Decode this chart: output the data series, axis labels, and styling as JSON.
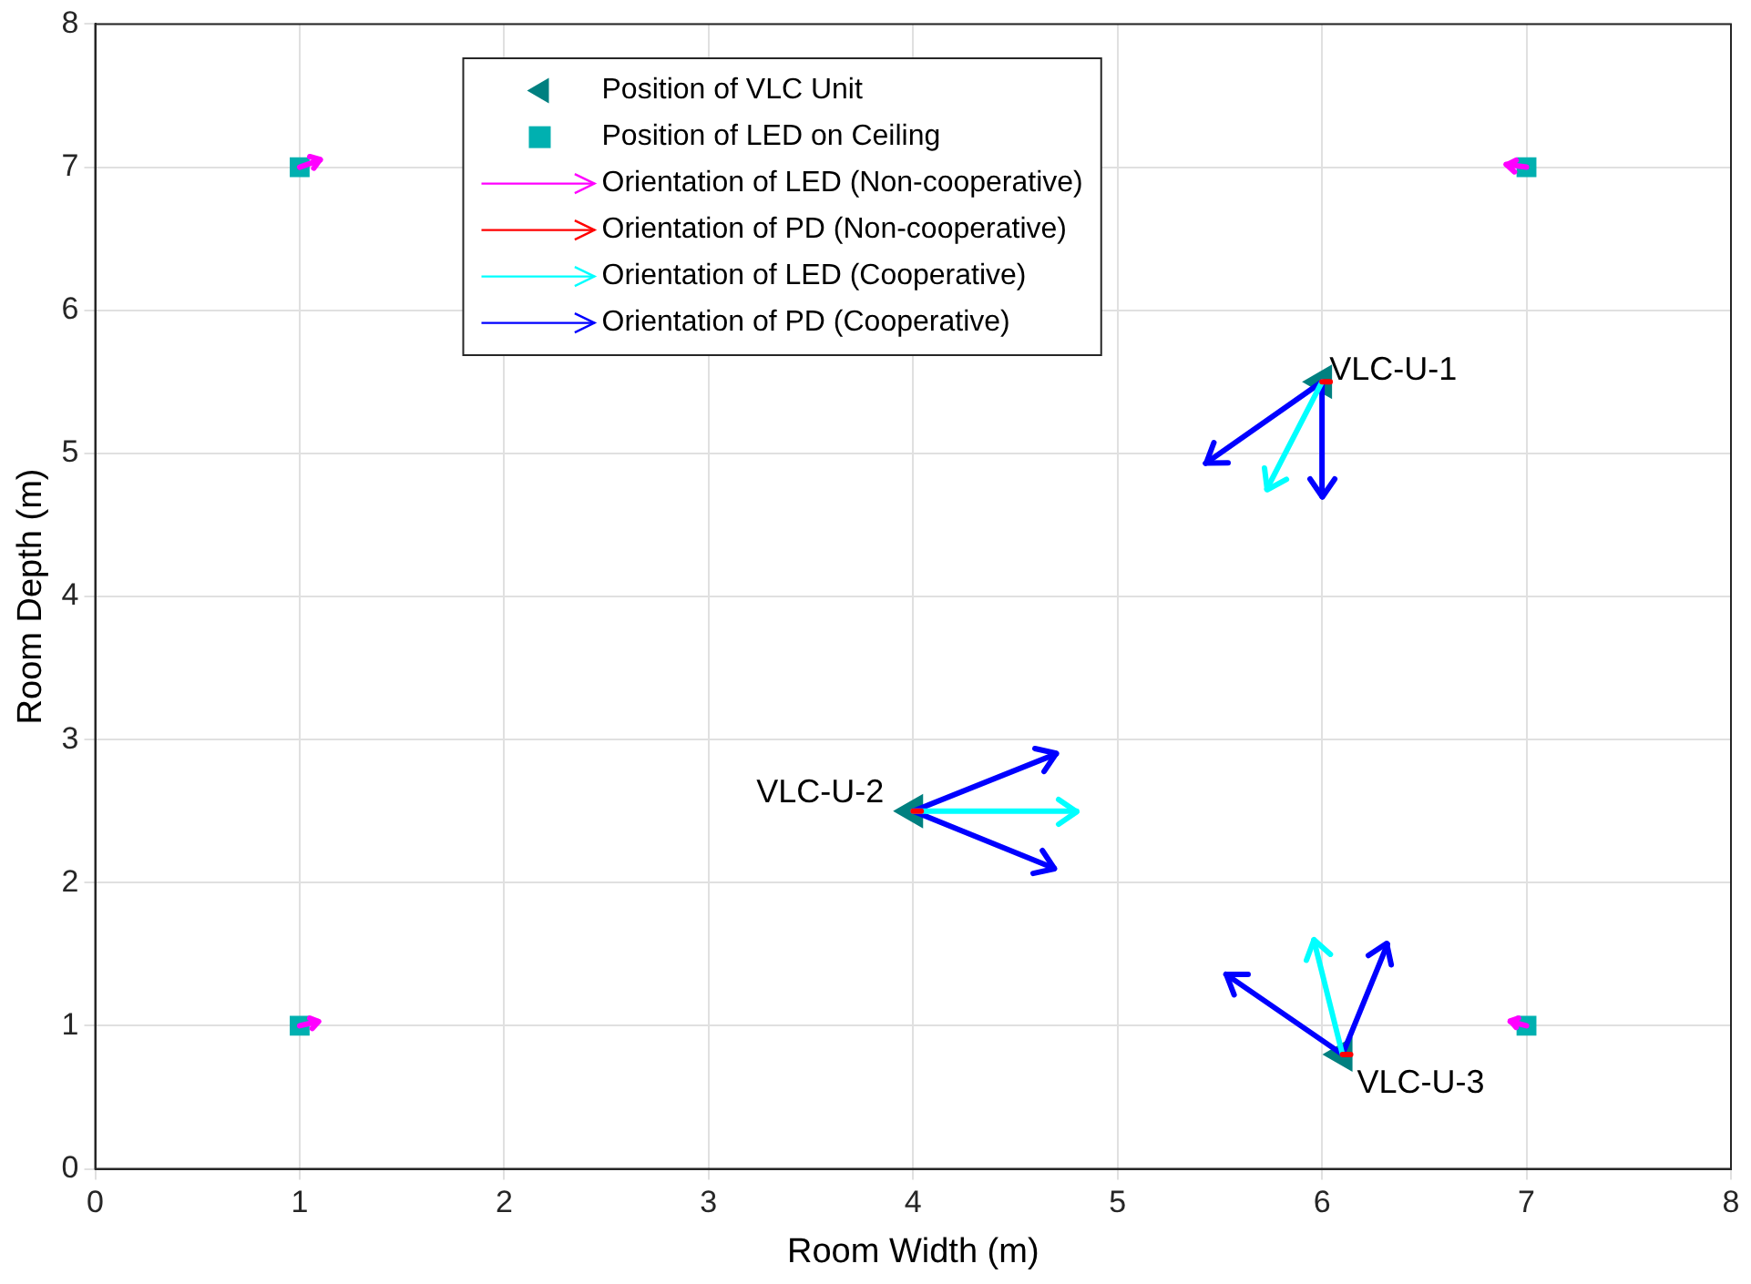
{
  "chart_data": {
    "type": "scatter",
    "xlabel": "Room Width (m)",
    "ylabel": "Room Depth (m)",
    "xlim": [
      0,
      8
    ],
    "ylim": [
      0,
      8
    ],
    "xticks": [
      0,
      1,
      2,
      3,
      4,
      5,
      6,
      7,
      8
    ],
    "yticks": [
      0,
      1,
      2,
      3,
      4,
      5,
      6,
      7,
      8
    ],
    "grid": true,
    "legend": "top",
    "series": [
      {
        "name": "Position of VLC Unit",
        "type": "scatter",
        "marker": "triangle",
        "color": "#008080",
        "x": [
          6,
          4,
          6.1
        ],
        "values": [
          5.5,
          2.5,
          0.8
        ]
      },
      {
        "name": "Position of LED on Ceiling",
        "type": "scatter",
        "marker": "square",
        "color": "#00b0b0",
        "x": [
          1,
          7,
          1,
          7
        ],
        "values": [
          7,
          7,
          1,
          1
        ]
      },
      {
        "name": "Orientation of LED (Non-cooperative)",
        "type": "line",
        "color": "#ff00ff",
        "x": [
          1,
          1.1,
          null,
          7,
          6.9,
          null,
          1,
          1.09,
          null,
          7,
          6.92
        ],
        "values": [
          7,
          7.05,
          null,
          7,
          7.02,
          null,
          1,
          1.03,
          null,
          1,
          1.03
        ]
      },
      {
        "name": "Orientation of PD (Non-cooperative)",
        "type": "line",
        "color": "#ff0000",
        "x": [
          6,
          6.04,
          null,
          4,
          4.04,
          null,
          6.1,
          6.14
        ],
        "values": [
          5.5,
          5.5,
          null,
          2.5,
          2.5,
          null,
          0.8,
          0.8
        ]
      },
      {
        "name": "Orientation of LED (Cooperative)",
        "type": "line",
        "color": "#00ffff",
        "x": [
          6,
          5.73,
          null,
          4,
          4.8,
          null,
          6.1,
          5.96
        ],
        "values": [
          5.5,
          4.75,
          null,
          2.5,
          2.5,
          null,
          0.8,
          1.6
        ]
      },
      {
        "name": "Orientation of PD (Cooperative)",
        "type": "line",
        "color": "#0000ff",
        "x": [
          6,
          5.43,
          null,
          6,
          6,
          null,
          4,
          4.7,
          null,
          4,
          4.69,
          null,
          6.1,
          5.53,
          null,
          6.1,
          6.32
        ],
        "values": [
          5.5,
          4.93,
          null,
          5.5,
          4.7,
          null,
          2.5,
          2.9,
          null,
          2.5,
          2.1,
          null,
          0.8,
          1.36,
          null,
          0.8,
          1.57
        ]
      }
    ],
    "annotations": [
      {
        "text": "VLC-U-1",
        "x": 6,
        "y": 5.5
      },
      {
        "text": "VLC-U-2",
        "x": 4,
        "y": 2.5
      },
      {
        "text": "VLC-U-3",
        "x": 6.1,
        "y": 0.8
      }
    ]
  }
}
